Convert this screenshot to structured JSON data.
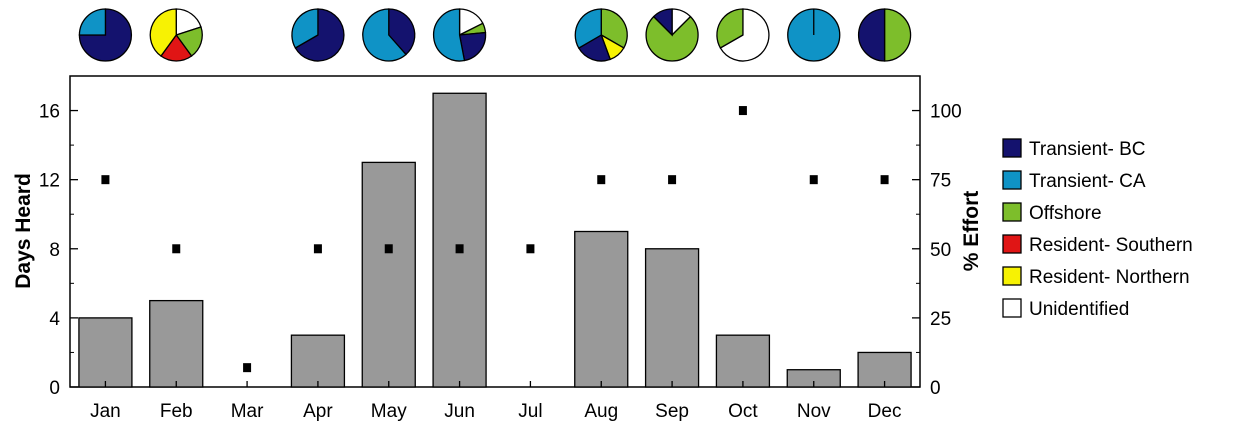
{
  "chart_data": {
    "type": "bar",
    "categories": [
      "Jan",
      "Feb",
      "Mar",
      "Apr",
      "May",
      "Jun",
      "Jul",
      "Aug",
      "Sep",
      "Oct",
      "Nov",
      "Dec"
    ],
    "ylabel": "Days Heard",
    "y2label": "% Effort",
    "ylim": [
      0,
      18
    ],
    "y2lim": [
      0,
      112.5
    ],
    "yticks": [
      "0",
      "4",
      "8",
      "12",
      "16"
    ],
    "y2ticks": [
      "0",
      "25",
      "50",
      "75",
      "100"
    ],
    "grid": false,
    "legend_placement": "right",
    "series": [
      {
        "type": "bar",
        "color": "#999999",
        "values": [
          4,
          5,
          0,
          3,
          13,
          17,
          0,
          9,
          8,
          3,
          1,
          2
        ]
      },
      {
        "type": "scatter",
        "axis": "right",
        "marker": "square",
        "color": "#000000",
        "values": [
          75,
          50,
          7,
          50,
          50,
          50,
          50,
          75,
          75,
          100,
          75,
          75
        ]
      }
    ],
    "pie_colors": {
      "Transient- BC": "#14126e",
      "Transient- CA": "#0f93c6",
      "Offshore": "#7dbe2b",
      "Resident- Southern": "#e01515",
      "Resident- Northern": "#f7f203",
      "Unidentified": "#ffffff"
    },
    "pies": [
      [
        {
          "category": "Transient- BC",
          "fraction": 0.75
        },
        {
          "category": "Transient- CA",
          "fraction": 0.25
        }
      ],
      [
        {
          "category": "Unidentified",
          "fraction": 0.2
        },
        {
          "category": "Offshore",
          "fraction": 0.2
        },
        {
          "category": "Resident- Southern",
          "fraction": 0.2
        },
        {
          "category": "Resident- Northern",
          "fraction": 0.4
        }
      ],
      null,
      [
        {
          "category": "Transient- BC",
          "fraction": 0.667
        },
        {
          "category": "Transient- CA",
          "fraction": 0.333
        }
      ],
      [
        {
          "category": "Transient- BC",
          "fraction": 0.385
        },
        {
          "category": "Transient- CA",
          "fraction": 0.615
        }
      ],
      [
        {
          "category": "Unidentified",
          "fraction": 0.176
        },
        {
          "category": "Offshore",
          "fraction": 0.059
        },
        {
          "category": "Transient- BC",
          "fraction": 0.235
        },
        {
          "category": "Transient- CA",
          "fraction": 0.53
        }
      ],
      null,
      [
        {
          "category": "Offshore",
          "fraction": 0.333
        },
        {
          "category": "Resident- Northern",
          "fraction": 0.111
        },
        {
          "category": "Transient- BC",
          "fraction": 0.222
        },
        {
          "category": "Transient- CA",
          "fraction": 0.334
        }
      ],
      [
        {
          "category": "Unidentified",
          "fraction": 0.125
        },
        {
          "category": "Offshore",
          "fraction": 0.75
        },
        {
          "category": "Transient- BC",
          "fraction": 0.125
        }
      ],
      [
        {
          "category": "Unidentified",
          "fraction": 0.667
        },
        {
          "category": "Offshore",
          "fraction": 0.333
        }
      ],
      [
        {
          "category": "Transient- CA",
          "fraction": 1.0
        }
      ],
      [
        {
          "category": "Offshore",
          "fraction": 0.5
        },
        {
          "category": "Transient- BC",
          "fraction": 0.5
        }
      ]
    ],
    "legend": [
      "Transient- BC",
      "Transient- CA",
      "Offshore",
      "Resident- Southern",
      "Resident- Northern",
      "Unidentified"
    ]
  }
}
